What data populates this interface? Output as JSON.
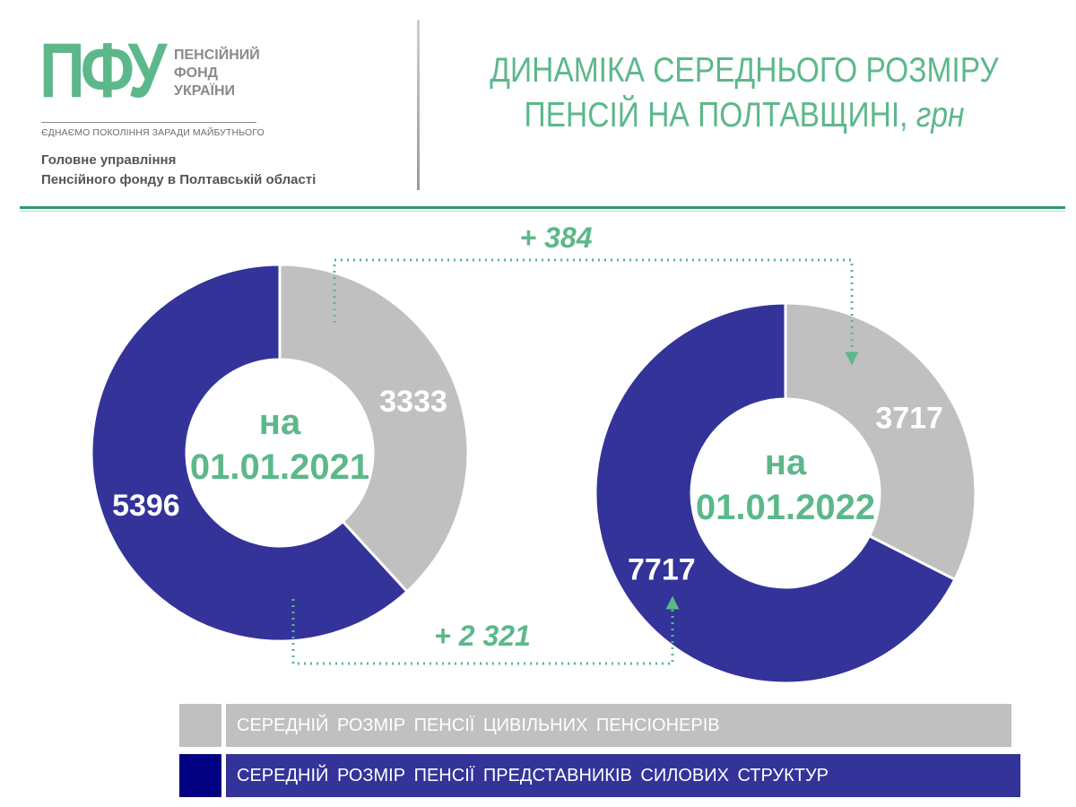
{
  "header": {
    "logo_mark": "ПФУ",
    "logo_words": [
      "ПЕНСІЙНИЙ",
      "ФОНД",
      "УКРАЇНИ"
    ],
    "slogan": "ЄДНАЄМО ПОКОЛІННЯ ЗАРАДИ МАЙБУТНЬОГО",
    "org_line1": "Головне управління",
    "org_line2": "Пенсійного фонду в Полтавській області",
    "title_line1": "ДИНАМІКА СЕРЕДНЬОГО РОЗМІРУ",
    "title_line2": "ПЕНСІЙ НА ПОЛТАВЩИНІ,",
    "title_unit": "грн"
  },
  "colors": {
    "accent_green": "#5cb88a",
    "civil_gray": "#c0c0c0",
    "security_navy": "#333399",
    "legend_navy_swatch": "#000080"
  },
  "chart_data": [
    {
      "type": "pie",
      "center_label_line1": "на",
      "center_label_line2": "01.01.2021",
      "slices": [
        {
          "category": "civil",
          "value": 3333,
          "label": "3333"
        },
        {
          "category": "security",
          "value": 5396,
          "label": "5396"
        }
      ]
    },
    {
      "type": "pie",
      "center_label_line1": "на",
      "center_label_line2": "01.01.2022",
      "slices": [
        {
          "category": "civil",
          "value": 3717,
          "label": "3717"
        },
        {
          "category": "security",
          "value": 7717,
          "label": "7717"
        }
      ]
    }
  ],
  "annotations": {
    "civil_increase": "+ 384",
    "security_increase": "+ 2 321"
  },
  "legend": [
    {
      "category": "civil",
      "label": "СЕРЕДНІЙ РОЗМІР ПЕНСІЇ ЦИВІЛЬНИХ ПЕНСІОНЕРІВ"
    },
    {
      "category": "security",
      "label": "СЕРЕДНІЙ РОЗМІР ПЕНСІЇ ПРЕДСТАВНИКІВ СИЛОВИХ СТРУКТУР"
    }
  ]
}
